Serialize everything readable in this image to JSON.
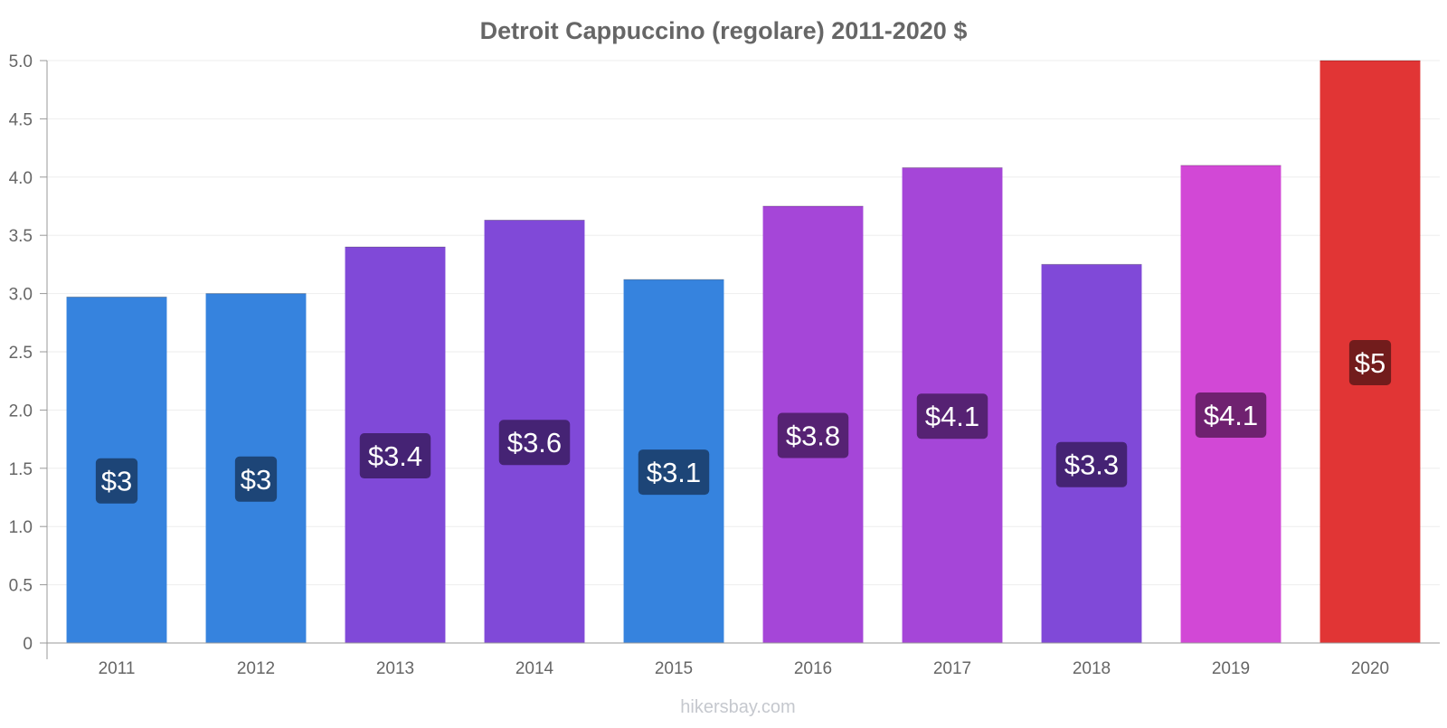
{
  "chart_data": {
    "type": "bar",
    "title": "Detroit Cappuccino (regolare) 2011-2020 $",
    "xlabel": "",
    "ylabel": "",
    "ylim": [
      0,
      5.0
    ],
    "yticks": [
      0,
      0.5,
      1.0,
      1.5,
      2.0,
      2.5,
      3.0,
      3.5,
      4.0,
      4.5,
      5.0
    ],
    "ytick_labels": [
      "0",
      "0.5",
      "1.0",
      "1.5",
      "2.0",
      "2.5",
      "3.0",
      "3.5",
      "4.0",
      "4.5",
      "5.0"
    ],
    "categories": [
      "2011",
      "2012",
      "2013",
      "2014",
      "2015",
      "2016",
      "2017",
      "2018",
      "2019",
      "2020"
    ],
    "values": [
      2.97,
      3.0,
      3.4,
      3.63,
      3.12,
      3.75,
      4.08,
      3.25,
      4.1,
      5.0
    ],
    "data_labels": [
      "$3",
      "$3",
      "$3.4",
      "$3.6",
      "$3.1",
      "$3.8",
      "$4.1",
      "$3.3",
      "$4.1",
      "$5"
    ],
    "bar_colors": [
      "#3683de",
      "#3683de",
      "#8049d8",
      "#8049d8",
      "#3683de",
      "#a546d8",
      "#a546d8",
      "#8049d8",
      "#d248d6",
      "#e13535"
    ],
    "label_bg_colors": [
      "#1d4577",
      "#1d4577",
      "#452374",
      "#452374",
      "#1d4577",
      "#562273",
      "#562273",
      "#452374",
      "#6f2170",
      "#721c1c"
    ],
    "grid": true,
    "legend": "none"
  },
  "watermark": "hikersbay.com",
  "colors": {
    "title": "#666666",
    "tick_text": "#666666",
    "axis_line": "#999999",
    "grid_line": "#eeeeee",
    "watermark": "#c5c8ce",
    "label_text": "#ffffff"
  }
}
